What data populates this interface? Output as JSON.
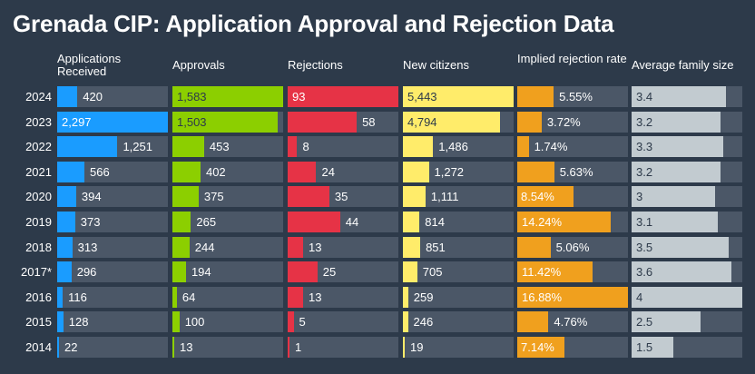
{
  "title": "Grenada CIP: Application Approval and Rejection Data",
  "colors": {
    "background": "#2d3a4a",
    "track": "#4b5767",
    "applications": "#1a9cff",
    "approvals": "#8ccf00",
    "rejections": "#e63346",
    "new_citizens": "#ffec6a",
    "rejection_rate": "#f0a01e",
    "family_size": "#c2cbd0"
  },
  "chart_data": {
    "type": "table",
    "title": "Grenada CIP: Application Approval and Rejection Data",
    "years": [
      "2024",
      "2023",
      "2022",
      "2021",
      "2020",
      "2019",
      "2018",
      "2017*",
      "2016",
      "2015",
      "2014"
    ],
    "columns": [
      {
        "key": "applications",
        "header": "Applications Received",
        "max": 2297,
        "values": [
          420,
          2297,
          1251,
          566,
          394,
          373,
          313,
          296,
          116,
          128,
          22
        ],
        "labels": [
          "420",
          "2,297",
          "1,251",
          "566",
          "394",
          "373",
          "313",
          "296",
          "116",
          "128",
          "22"
        ]
      },
      {
        "key": "approvals",
        "header": "Approvals",
        "max": 1583,
        "values": [
          1583,
          1503,
          453,
          402,
          375,
          265,
          244,
          194,
          64,
          100,
          13
        ],
        "labels": [
          "1,583",
          "1,503",
          "453",
          "402",
          "375",
          "265",
          "244",
          "194",
          "64",
          "100",
          "13"
        ]
      },
      {
        "key": "rejections",
        "header": "Rejections",
        "max": 93,
        "values": [
          93,
          58,
          8,
          24,
          35,
          44,
          13,
          25,
          13,
          5,
          1
        ],
        "labels": [
          "93",
          "58",
          "8",
          "24",
          "35",
          "44",
          "13",
          "25",
          "13",
          "5",
          "1"
        ]
      },
      {
        "key": "new_citizens",
        "header": "New citizens",
        "max": 5443,
        "values": [
          5443,
          4794,
          1486,
          1272,
          1111,
          814,
          851,
          705,
          259,
          246,
          19
        ],
        "labels": [
          "5,443",
          "4,794",
          "1,486",
          "1,272",
          "1,111",
          "814",
          "851",
          "705",
          "259",
          "246",
          "19"
        ]
      },
      {
        "key": "rejection_rate",
        "header": "Implied rejection rate",
        "max": 16.88,
        "values": [
          5.55,
          3.72,
          1.74,
          5.63,
          8.54,
          14.24,
          5.06,
          11.42,
          16.88,
          4.76,
          7.14
        ],
        "labels": [
          "5.55%",
          "3.72%",
          "1.74%",
          "5.63%",
          "8.54%",
          "14.24%",
          "5.06%",
          "11.42%",
          "16.88%",
          "4.76%",
          "7.14%"
        ]
      },
      {
        "key": "family_size",
        "header": "Average family size",
        "max": 4,
        "values": [
          3.4,
          3.2,
          3.3,
          3.2,
          3,
          3.1,
          3.5,
          3.6,
          4,
          2.5,
          1.5
        ],
        "labels": [
          "3.4",
          "3.2",
          "3.3",
          "3.2",
          "3",
          "3.1",
          "3.5",
          "3.6",
          "4",
          "2.5",
          "1.5"
        ]
      }
    ]
  }
}
